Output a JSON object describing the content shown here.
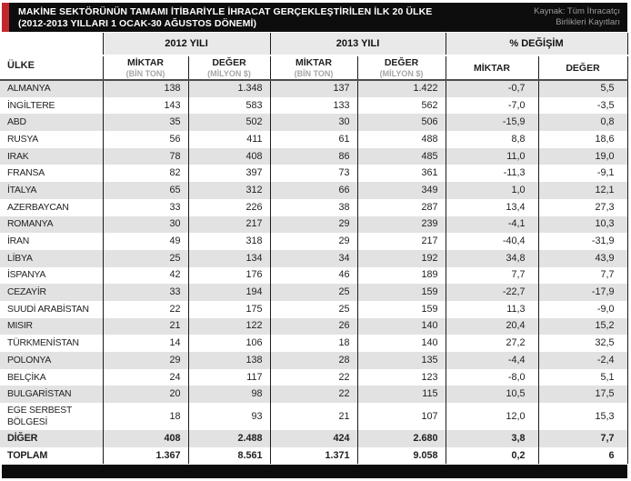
{
  "title_bar": {
    "title_line1": "MAKİNE SEKTÖRÜNÜN TAMAMI İTİBARİYLE İHRACAT GERÇEKLEŞTİRİLEN İLK 20 ÜLKE",
    "title_line2": "(2012-2013 YILLARI 1 OCAK-30 AĞUSTOS DÖNEMİ)",
    "source_line1": "Kaynak: Tüm İhracatçı",
    "source_line2": "Birlikleri Kayıtları"
  },
  "colors": {
    "accent_red": "#c1272d",
    "bar_black": "#0d0d0d",
    "row_stripe_gray": "#e2e2e2",
    "group_header_bg": "#e9e9e9",
    "source_text_gray": "#9b9b9b",
    "subheader_unit_gray": "#a6a6a6",
    "header_divider_dark": "#4d4d4d"
  },
  "table": {
    "country_header": "ÜLKE",
    "groups": [
      "2012 YILI",
      "2013 YILI",
      "% DEĞİŞİM"
    ],
    "subheaders": [
      {
        "label": "MİKTAR",
        "sub": "(BİN TON)"
      },
      {
        "label": "DEĞER",
        "sub": "(MİLYON $)"
      },
      {
        "label": "MİKTAR",
        "sub": "(BİN TON)"
      },
      {
        "label": "DEĞER",
        "sub": "(MİLYON $)"
      },
      {
        "label": "MİKTAR",
        "sub": ""
      },
      {
        "label": "DEĞER",
        "sub": ""
      }
    ]
  },
  "chart_data": {
    "type": "table",
    "title": "MAKİNE SEKTÖRÜNÜN TAMAMI İTİBARİYLE İHRACAT GERÇEKLEŞTİRİLEN İLK 20 ÜLKE (2012-2013 YILLARI 1 OCAK-30 AĞUSTOS DÖNEMİ)",
    "source": "Kaynak: Tüm İhracatçı Birlikleri Kayıtları",
    "column_groups": [
      "2012 YILI",
      "2013 YILI",
      "% DEĞİŞİM"
    ],
    "columns": [
      "ÜLKE",
      "2012 YILI MİKTAR (BİN TON)",
      "2012 YILI DEĞER (MİLYON $)",
      "2013 YILI MİKTAR (BİN TON)",
      "2013 YILI DEĞER (MİLYON $)",
      "% DEĞİŞİM MİKTAR",
      "% DEĞİŞİM DEĞER"
    ],
    "rows": [
      {
        "country": "ALMANYA",
        "values": [
          "138",
          "1.348",
          "137",
          "1.422",
          "-0,7",
          "5,5"
        ],
        "bold": false
      },
      {
        "country": "İNGİLTERE",
        "values": [
          "143",
          "583",
          "133",
          "562",
          "-7,0",
          "-3,5"
        ],
        "bold": false
      },
      {
        "country": "ABD",
        "values": [
          "35",
          "502",
          "30",
          "506",
          "-15,9",
          "0,8"
        ],
        "bold": false
      },
      {
        "country": "RUSYA",
        "values": [
          "56",
          "411",
          "61",
          "488",
          "8,8",
          "18,6"
        ],
        "bold": false
      },
      {
        "country": "IRAK",
        "values": [
          "78",
          "408",
          "86",
          "485",
          "11,0",
          "19,0"
        ],
        "bold": false
      },
      {
        "country": "FRANSA",
        "values": [
          "82",
          "397",
          "73",
          "361",
          "-11,3",
          "-9,1"
        ],
        "bold": false
      },
      {
        "country": "İTALYA",
        "values": [
          "65",
          "312",
          "66",
          "349",
          "1,0",
          "12,1"
        ],
        "bold": false
      },
      {
        "country": "AZERBAYCAN",
        "values": [
          "33",
          "226",
          "38",
          "287",
          "13,4",
          "27,3"
        ],
        "bold": false
      },
      {
        "country": "ROMANYA",
        "values": [
          "30",
          "217",
          "29",
          "239",
          "-4,1",
          "10,3"
        ],
        "bold": false
      },
      {
        "country": "İRAN",
        "values": [
          "49",
          "318",
          "29",
          "217",
          "-40,4",
          "-31,9"
        ],
        "bold": false
      },
      {
        "country": "LİBYA",
        "values": [
          "25",
          "134",
          "34",
          "192",
          "34,8",
          "43,9"
        ],
        "bold": false
      },
      {
        "country": "İSPANYA",
        "values": [
          "42",
          "176",
          "46",
          "189",
          "7,7",
          "7,7"
        ],
        "bold": false
      },
      {
        "country": "CEZAYİR",
        "values": [
          "33",
          "194",
          "25",
          "159",
          "-22,7",
          "-17,9"
        ],
        "bold": false
      },
      {
        "country": "SUUDİ ARABİSTAN",
        "values": [
          "22",
          "175",
          "25",
          "159",
          "11,3",
          "-9,0"
        ],
        "bold": false
      },
      {
        "country": "MISIR",
        "values": [
          "21",
          "122",
          "26",
          "140",
          "20,4",
          "15,2"
        ],
        "bold": false
      },
      {
        "country": "TÜRKMENİSTAN",
        "values": [
          "14",
          "106",
          "18",
          "140",
          "27,2",
          "32,5"
        ],
        "bold": false
      },
      {
        "country": "POLONYA",
        "values": [
          "29",
          "138",
          "28",
          "135",
          "-4,4",
          "-2,4"
        ],
        "bold": false
      },
      {
        "country": "BELÇİKA",
        "values": [
          "24",
          "117",
          "22",
          "123",
          "-8,0",
          "5,1"
        ],
        "bold": false
      },
      {
        "country": "BULGARİSTAN",
        "values": [
          "20",
          "98",
          "22",
          "115",
          "10,5",
          "17,5"
        ],
        "bold": false
      },
      {
        "country": "EGE SERBEST BÖLGESİ",
        "values": [
          "18",
          "93",
          "21",
          "107",
          "12,0",
          "15,3"
        ],
        "bold": false
      },
      {
        "country": "DİĞER",
        "values": [
          "408",
          "2.488",
          "424",
          "2.680",
          "3,8",
          "7,7"
        ],
        "bold": true
      },
      {
        "country": "TOPLAM",
        "values": [
          "1.367",
          "8.561",
          "1.371",
          "9.058",
          "0,2",
          "6"
        ],
        "bold": true
      }
    ]
  }
}
